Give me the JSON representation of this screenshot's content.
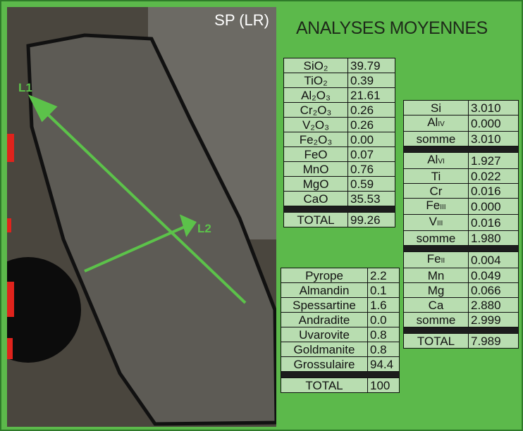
{
  "photo": {
    "caption": "SP (LR)",
    "labels": [
      "L1",
      "L2"
    ]
  },
  "title": "ANALYSES MOYENNES",
  "oxides": {
    "rows": [
      [
        "SiO₂",
        "39.79"
      ],
      [
        "TiO₂",
        "0.39"
      ],
      [
        "Al₂O₃",
        "21.61"
      ],
      [
        "Cr₂O₃",
        "0.26"
      ],
      [
        "V₂O₃",
        "0.26"
      ],
      [
        "Fe₂O₃",
        "0.00"
      ],
      [
        "FeO",
        "0.07"
      ],
      [
        "MnO",
        "0.76"
      ],
      [
        "MgO",
        "0.59"
      ],
      [
        "CaO",
        "35.53"
      ]
    ],
    "total": [
      "TOTAL",
      "99.26"
    ]
  },
  "endmembers": {
    "rows": [
      [
        "Pyrope",
        "2.2"
      ],
      [
        "Almandin",
        "0.1"
      ],
      [
        "Spessartine",
        "1.6"
      ],
      [
        "Andradite",
        "0.0"
      ],
      [
        "Uvarovite",
        "0.8"
      ],
      [
        "Goldmanite",
        "0.8"
      ],
      [
        "Grossulaire",
        "94.4"
      ]
    ],
    "total": [
      "TOTAL",
      "100"
    ]
  },
  "cations": {
    "groups": [
      {
        "rows": [
          {
            "el": "Si",
            "value": "3.010"
          },
          {
            "el": "Al",
            "sub": "IV",
            "value": "0.000"
          },
          {
            "el": "somme",
            "value": "3.010"
          }
        ]
      },
      {
        "rows": [
          {
            "el": "Al",
            "sub": "VI",
            "value": "1.927"
          },
          {
            "el": "Ti",
            "value": "0.022"
          },
          {
            "el": "Cr",
            "value": "0.016"
          },
          {
            "el": "Fe",
            "sub": "III",
            "value": "0.000"
          },
          {
            "el": "V",
            "sub": "III",
            "value": "0.016"
          },
          {
            "el": "somme",
            "value": "1.980"
          }
        ]
      },
      {
        "rows": [
          {
            "el": "Fe",
            "sub": "II",
            "value": "0.004"
          },
          {
            "el": "Mn",
            "value": "0.049"
          },
          {
            "el": "Mg",
            "value": "0.066"
          },
          {
            "el": "Ca",
            "value": "2.880"
          },
          {
            "el": "somme",
            "value": "2.999"
          }
        ]
      }
    ],
    "total": [
      "TOTAL",
      "7.989"
    ]
  }
}
